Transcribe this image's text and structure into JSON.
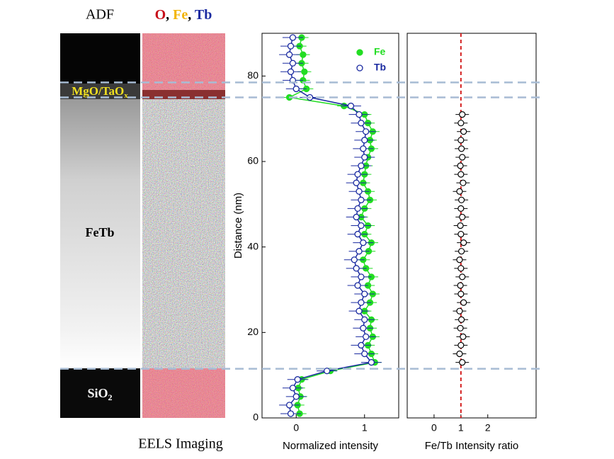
{
  "panels": {
    "adf_label": "ADF",
    "map_label": [
      {
        "text": "O",
        "color": "#c8101a"
      },
      {
        "text": ", ",
        "color": "#000000"
      },
      {
        "text": "Fe",
        "color": "#f2b400"
      },
      {
        "text": ", ",
        "color": "#000000"
      },
      {
        "text": "Tb",
        "color": "#1a2aa0"
      }
    ],
    "cap_label": [
      "MgO/TaO",
      "x"
    ],
    "film_label": "FeTb",
    "substrate_label": [
      "SiO",
      "2"
    ],
    "caption": "EELS Imaging"
  },
  "chart_data": [
    {
      "type": "line",
      "y_label": "Distance (nm)",
      "x_label": "Normalized intensity",
      "xlim": [
        -0.5,
        1.5
      ],
      "xticks": [
        0,
        1
      ],
      "ylim": [
        0,
        90
      ],
      "yticks": [
        0,
        20,
        40,
        60,
        80
      ],
      "interfaces": [
        78.5,
        75,
        11.5
      ],
      "y": [
        1,
        3,
        5,
        7,
        9,
        11,
        13,
        15,
        17,
        19,
        21,
        23,
        25,
        27,
        29,
        31,
        33,
        35,
        37,
        39,
        41,
        43,
        45,
        47,
        49,
        51,
        53,
        55,
        57,
        59,
        61,
        63,
        65,
        67,
        69,
        71,
        73,
        75,
        77,
        79,
        81,
        83,
        85,
        87,
        89
      ],
      "series": [
        {
          "name": "Fe",
          "color": "#22dd22",
          "marker": "filled",
          "error": 0.1,
          "values": [
            0.05,
            0.02,
            0.06,
            0.03,
            0.08,
            0.5,
            1.15,
            1.1,
            1.05,
            1.12,
            1.08,
            1.1,
            1.0,
            1.08,
            1.12,
            1.05,
            1.1,
            1.02,
            0.98,
            1.06,
            1.1,
            1.0,
            1.05,
            0.95,
            1.0,
            1.08,
            1.05,
            0.98,
            1.0,
            1.02,
            1.05,
            1.1,
            1.08,
            1.12,
            1.05,
            1.0,
            0.7,
            -0.1,
            0.15,
            0.1,
            0.12,
            0.08,
            0.1,
            0.05,
            0.08
          ]
        },
        {
          "name": "Tb",
          "color": "#1a2aa0",
          "marker": "open",
          "error": 0.15,
          "values": [
            -0.08,
            -0.1,
            0.0,
            -0.05,
            0.02,
            0.45,
            1.1,
            1.0,
            0.95,
            1.02,
            0.98,
            1.0,
            0.92,
            0.95,
            1.0,
            0.9,
            0.95,
            0.88,
            0.85,
            0.92,
            0.98,
            0.9,
            0.95,
            0.88,
            0.9,
            0.95,
            0.92,
            0.88,
            0.9,
            0.95,
            1.0,
            0.98,
            1.0,
            1.02,
            0.95,
            0.92,
            0.8,
            0.2,
            0.0,
            -0.05,
            -0.08,
            -0.05,
            -0.1,
            -0.08,
            -0.05
          ]
        }
      ]
    },
    {
      "type": "scatter",
      "x_label": "Fe/Tb Intensity ratio",
      "xlim": [
        -1,
        3.8
      ],
      "xticks": [
        0,
        1,
        2
      ],
      "ylim": [
        0,
        90
      ],
      "reference_line": 1,
      "reference_color": "#d42020",
      "y": [
        13,
        15,
        17,
        19,
        21,
        23,
        25,
        27,
        29,
        31,
        33,
        35,
        37,
        39,
        41,
        43,
        45,
        47,
        49,
        51,
        53,
        55,
        57,
        59,
        61,
        63,
        65,
        67,
        69,
        71
      ],
      "series": [
        {
          "name": "Fe/Tb",
          "color": "#000000",
          "error": 0.25,
          "values": [
            1.05,
            0.95,
            1.0,
            1.08,
            0.98,
            1.02,
            0.95,
            1.1,
            1.0,
            0.98,
            1.05,
            1.0,
            0.95,
            1.02,
            1.1,
            1.0,
            0.98,
            1.05,
            1.0,
            1.02,
            0.95,
            1.08,
            1.0,
            0.98,
            1.05,
            1.02,
            1.0,
            1.1,
            1.0,
            1.05
          ]
        }
      ]
    }
  ]
}
